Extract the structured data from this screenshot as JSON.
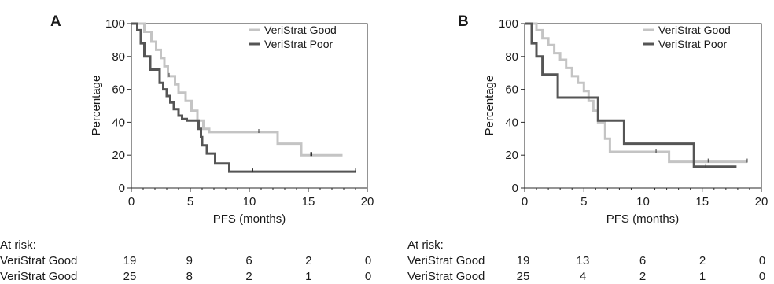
{
  "chart_data": [
    {
      "type": "line",
      "panel_label": "A",
      "xlabel": "PFS (months)",
      "ylabel": "Percentage",
      "xlim": [
        0,
        20
      ],
      "ylim": [
        0,
        100
      ],
      "xticks": [
        0,
        5,
        10,
        15,
        20
      ],
      "yticks": [
        0,
        20,
        40,
        60,
        80,
        100
      ],
      "grid": false,
      "legend_position": "top-right",
      "series": [
        {
          "name": "VeriStrat Good",
          "color": "#c4c4c4",
          "x": [
            0,
            1.1,
            1.1,
            1.7,
            1.7,
            2.1,
            2.1,
            2.5,
            2.5,
            2.8,
            2.8,
            3.1,
            3.1,
            3.7,
            3.7,
            4.0,
            4.0,
            4.6,
            4.6,
            5.1,
            5.1,
            5.6,
            5.6,
            6.1,
            6.1,
            6.6,
            6.6,
            12.4,
            12.4,
            14.4,
            14.4,
            17.9
          ],
          "y": [
            100,
            100,
            95,
            95,
            89,
            89,
            84,
            84,
            79,
            79,
            74,
            74,
            68,
            68,
            63,
            63,
            58,
            58,
            53,
            53,
            47,
            47,
            41,
            41,
            36,
            36,
            34,
            34,
            27,
            27,
            20,
            20
          ],
          "censor_x": [
            3.2,
            10.8,
            15.2,
            15.3
          ]
        },
        {
          "name": "VeriStrat Poor",
          "color": "#555555",
          "x": [
            0,
            0.5,
            0.5,
            0.8,
            0.8,
            1.1,
            1.1,
            1.6,
            1.6,
            2.4,
            2.4,
            2.7,
            2.7,
            3.0,
            3.0,
            3.3,
            3.3,
            3.6,
            3.6,
            4.0,
            4.0,
            4.3,
            4.3,
            4.7,
            4.7,
            5.7,
            5.7,
            5.9,
            5.9,
            6.0,
            6.0,
            6.4,
            6.4,
            7.1,
            7.1,
            8.3,
            8.3,
            19.0
          ],
          "y": [
            100,
            100,
            96,
            96,
            88,
            88,
            80,
            80,
            72,
            72,
            64,
            64,
            60,
            60,
            56,
            56,
            52,
            52,
            48,
            48,
            44,
            44,
            42,
            42,
            41,
            41,
            36,
            36,
            31,
            31,
            26,
            26,
            21,
            21,
            15,
            15,
            10,
            10
          ],
          "censor_x": [
            10.3,
            19.0
          ]
        }
      ],
      "at_risk": {
        "title": "At risk:",
        "rows": [
          {
            "label": "VeriStrat Good",
            "counts": [
              "19",
              "9",
              "6",
              "2",
              "0"
            ]
          },
          {
            "label": "VeriStrat Good",
            "counts": [
              "25",
              "8",
              "2",
              "1",
              "0"
            ]
          }
        ]
      }
    },
    {
      "type": "line",
      "panel_label": "B",
      "xlabel": "PFS (months)",
      "ylabel": "Percentage",
      "xlim": [
        0,
        20
      ],
      "ylim": [
        0,
        100
      ],
      "xticks": [
        0,
        5,
        10,
        15,
        20
      ],
      "yticks": [
        0,
        20,
        40,
        60,
        80,
        100
      ],
      "grid": false,
      "legend_position": "top-right",
      "series": [
        {
          "name": "VeriStrat Good",
          "color": "#c4c4c4",
          "x": [
            0,
            1.0,
            1.0,
            1.5,
            1.5,
            2.0,
            2.0,
            2.5,
            2.5,
            3.0,
            3.0,
            3.5,
            3.5,
            4.0,
            4.0,
            4.5,
            4.5,
            5.0,
            5.0,
            5.4,
            5.4,
            5.8,
            5.8,
            6.2,
            6.2,
            6.8,
            6.8,
            7.2,
            7.2,
            11.0,
            11.0,
            12.2,
            12.2,
            18.8
          ],
          "y": [
            100,
            100,
            96,
            96,
            91,
            91,
            87,
            87,
            82,
            82,
            78,
            78,
            73,
            73,
            68,
            68,
            64,
            64,
            59,
            59,
            53,
            53,
            47,
            47,
            40,
            40,
            30,
            30,
            22,
            22,
            22,
            22,
            16,
            16
          ],
          "censor_x": [
            11.1,
            15.5,
            18.8
          ]
        },
        {
          "name": "VeriStrat Poor",
          "color": "#555555",
          "x": [
            0,
            0.6,
            0.6,
            1.0,
            1.0,
            1.5,
            1.5,
            2.8,
            2.8,
            6.2,
            6.2,
            8.4,
            8.4,
            14.3,
            14.3,
            17.9
          ],
          "y": [
            100,
            100,
            88,
            88,
            80,
            80,
            69,
            69,
            55,
            55,
            41,
            41,
            27,
            27,
            13,
            13
          ],
          "censor_x": [
            15.3
          ]
        }
      ],
      "at_risk": {
        "title": "At risk:",
        "rows": [
          {
            "label": "VeriStrat Good",
            "counts": [
              "19",
              "13",
              "6",
              "2",
              "0"
            ]
          },
          {
            "label": "VeriStrat Good",
            "counts": [
              "25",
              "4",
              "2",
              "1",
              "0"
            ]
          }
        ]
      }
    }
  ]
}
